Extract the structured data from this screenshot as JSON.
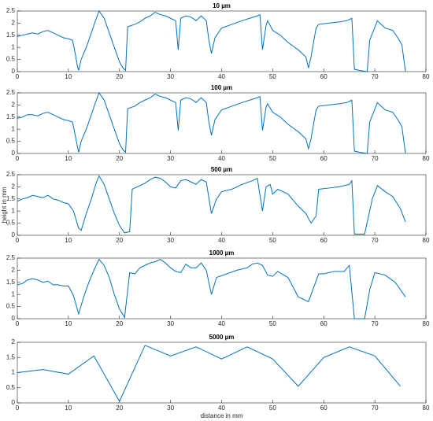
{
  "chart_data": [
    {
      "type": "line",
      "title": "10 µm",
      "color": "#0072bd",
      "x": [
        0,
        1,
        2,
        3,
        4,
        5,
        6,
        7,
        8,
        9,
        10,
        10.8,
        11.2,
        11.7,
        12,
        12.5,
        13.5,
        14.5,
        15.3,
        16,
        17,
        18,
        19,
        20,
        20.7,
        21.2,
        21.6,
        23,
        24,
        25,
        26,
        27,
        28,
        29,
        30,
        31,
        31.5,
        32,
        33,
        34,
        35,
        36,
        37,
        37.5,
        38,
        38.7,
        40,
        42,
        44,
        45.5,
        47,
        47.5,
        48,
        48.7,
        49,
        50,
        51.5,
        53,
        55,
        56.5,
        57,
        57.5,
        58.5,
        59,
        61,
        63,
        64.5,
        65.5,
        66,
        67,
        68.5,
        69,
        70.5,
        72,
        73.5,
        74.5,
        75.3,
        76
      ],
      "values": [
        1.45,
        1.5,
        1.55,
        1.6,
        1.55,
        1.65,
        1.7,
        1.6,
        1.5,
        1.4,
        1.35,
        1.3,
        0.9,
        0.3,
        0.05,
        0.5,
        1.0,
        1.6,
        2.1,
        2.5,
        2.2,
        1.6,
        1.0,
        0.4,
        0.15,
        0.05,
        1.85,
        1.95,
        2.05,
        2.2,
        2.3,
        2.45,
        2.35,
        2.3,
        2.2,
        2.1,
        0.9,
        2.2,
        2.3,
        2.25,
        2.1,
        2.3,
        2.1,
        1.3,
        0.75,
        1.4,
        1.8,
        1.95,
        2.1,
        2.2,
        2.3,
        2.35,
        0.9,
        1.9,
        2.1,
        1.7,
        1.5,
        1.2,
        0.9,
        0.6,
        0.15,
        0.6,
        1.8,
        1.95,
        2.0,
        2.05,
        2.1,
        2.2,
        0.1,
        0.05,
        0,
        1.3,
        2.1,
        1.8,
        1.7,
        1.4,
        1.1,
        0
      ],
      "xlim": [
        0,
        80
      ],
      "xticks": [
        0,
        10,
        20,
        30,
        40,
        50,
        60,
        70,
        80
      ],
      "ylim": [
        0,
        2.5
      ],
      "yticks": [
        0,
        0.5,
        1,
        1.5,
        2,
        2.5
      ]
    },
    {
      "type": "line",
      "title": "100 µm",
      "color": "#0072bd",
      "x": [
        0,
        1,
        2,
        3,
        4,
        5,
        6,
        7,
        8,
        9,
        10,
        10.8,
        11.2,
        11.7,
        12,
        12.5,
        13.5,
        14.5,
        15.3,
        16,
        17,
        18,
        19,
        20,
        20.7,
        21.2,
        21.6,
        23,
        24,
        25,
        26,
        27,
        28,
        29,
        30,
        31,
        31.5,
        32,
        33,
        34,
        35,
        36,
        37,
        37.5,
        38,
        38.7,
        40,
        42,
        44,
        45.5,
        47,
        47.5,
        48,
        48.7,
        49,
        50,
        51.5,
        53,
        55,
        56.5,
        57,
        57.5,
        58.5,
        59,
        61,
        63,
        64.5,
        65.5,
        66,
        67,
        68.5,
        69,
        70.5,
        72,
        73.5,
        74.5,
        75.3,
        76
      ],
      "values": [
        1.45,
        1.5,
        1.6,
        1.6,
        1.55,
        1.65,
        1.7,
        1.6,
        1.5,
        1.4,
        1.35,
        1.3,
        0.9,
        0.35,
        0.05,
        0.5,
        1.0,
        1.6,
        2.1,
        2.5,
        2.2,
        1.6,
        1.0,
        0.4,
        0.15,
        0.05,
        1.85,
        1.95,
        2.1,
        2.2,
        2.3,
        2.45,
        2.35,
        2.3,
        2.2,
        2.1,
        0.95,
        2.2,
        2.3,
        2.25,
        2.1,
        2.3,
        2.1,
        1.3,
        0.75,
        1.4,
        1.8,
        1.95,
        2.1,
        2.2,
        2.3,
        2.35,
        0.95,
        1.9,
        2.05,
        1.7,
        1.5,
        1.2,
        0.9,
        0.6,
        0.2,
        0.6,
        1.8,
        1.95,
        2.0,
        2.05,
        2.1,
        2.2,
        0.1,
        0.05,
        0,
        1.3,
        2.1,
        1.8,
        1.7,
        1.4,
        1.1,
        0
      ],
      "xlim": [
        0,
        80
      ],
      "xticks": [
        0,
        10,
        20,
        30,
        40,
        50,
        60,
        70,
        80
      ],
      "ylim": [
        0,
        2.5
      ],
      "yticks": [
        0,
        0.5,
        1,
        1.5,
        2,
        2.5
      ]
    },
    {
      "type": "line",
      "title": "500 µm",
      "ylabel": "height in mm",
      "color": "#0072bd",
      "x": [
        0,
        1,
        2,
        3,
        4,
        5,
        6,
        7,
        8,
        9,
        10,
        11,
        12,
        12.5,
        13.5,
        14.5,
        15.5,
        16,
        17,
        18,
        19,
        20,
        21,
        22,
        22.5,
        24,
        25,
        26,
        27,
        28,
        29,
        30,
        31,
        32,
        33,
        34,
        35,
        36,
        37,
        38,
        39,
        40,
        42,
        44,
        46,
        47,
        48,
        48.7,
        49.5,
        50,
        51,
        53,
        55,
        56.5,
        57.5,
        58.5,
        59,
        61,
        63,
        65,
        65.5,
        66,
        68,
        69.5,
        70.5,
        72,
        73.5,
        75,
        76
      ],
      "values": [
        1.4,
        1.5,
        1.55,
        1.65,
        1.6,
        1.55,
        1.65,
        1.5,
        1.45,
        1.35,
        1.3,
        1.0,
        0.3,
        0.2,
        0.9,
        1.5,
        2.2,
        2.45,
        2.1,
        1.5,
        0.9,
        0.4,
        0.1,
        0.15,
        1.9,
        2.05,
        2.15,
        2.3,
        2.4,
        2.35,
        2.2,
        2.0,
        1.95,
        2.25,
        2.3,
        2.2,
        2.1,
        2.3,
        2.2,
        0.9,
        1.5,
        1.8,
        1.9,
        2.1,
        2.25,
        2.35,
        1.0,
        2.0,
        2.1,
        1.7,
        1.9,
        1.7,
        1.2,
        0.9,
        0.5,
        0.8,
        1.9,
        1.95,
        2.0,
        2.1,
        2.25,
        0.05,
        0.05,
        1.5,
        2.05,
        1.8,
        1.6,
        1.1,
        0.55
      ],
      "xlim": [
        0,
        80
      ],
      "xticks": [
        0,
        10,
        20,
        30,
        40,
        50,
        60,
        70,
        80
      ],
      "ylim": [
        0,
        2.5
      ],
      "yticks": [
        0,
        0.5,
        1,
        1.5,
        2,
        2.5
      ]
    },
    {
      "type": "line",
      "title": "1000 µm",
      "color": "#0072bd",
      "x": [
        0,
        1,
        2,
        3,
        4,
        5,
        6,
        7,
        8,
        9,
        10,
        11,
        12,
        13,
        14,
        15,
        16,
        17,
        18,
        19,
        20,
        21,
        22,
        23,
        24,
        25,
        26,
        27,
        28,
        29,
        30,
        31,
        32,
        33,
        34,
        35,
        36,
        37,
        38,
        39,
        41,
        43,
        45,
        46,
        47,
        48,
        49,
        50,
        51,
        53,
        55,
        57,
        59,
        60,
        62,
        64,
        65,
        66,
        68,
        69,
        70,
        72,
        74,
        76
      ],
      "values": [
        1.4,
        1.45,
        1.6,
        1.65,
        1.6,
        1.5,
        1.55,
        1.4,
        1.4,
        1.35,
        1.35,
        0.95,
        0.2,
        0.9,
        1.5,
        2.0,
        2.45,
        2.2,
        1.7,
        1.0,
        0.4,
        0.05,
        1.9,
        1.85,
        2.1,
        2.2,
        2.3,
        2.35,
        2.45,
        2.3,
        2.1,
        1.95,
        1.9,
        2.25,
        2.1,
        2.1,
        2.3,
        2.0,
        1.0,
        1.7,
        1.85,
        2.0,
        2.1,
        2.25,
        2.3,
        2.2,
        1.8,
        1.75,
        1.95,
        1.7,
        0.9,
        0.7,
        1.85,
        1.85,
        1.95,
        1.95,
        2.2,
        0,
        0,
        1.2,
        1.9,
        1.8,
        1.5,
        0.9
      ],
      "xlim": [
        0,
        80
      ],
      "xticks": [
        0,
        10,
        20,
        30,
        40,
        50,
        60,
        70,
        80
      ],
      "ylim": [
        0,
        2.5
      ],
      "yticks": [
        0,
        0.5,
        1,
        1.5,
        2,
        2.5
      ]
    },
    {
      "type": "line",
      "title": "5000 µm",
      "xlabel": "distance in mm",
      "color": "#0072bd",
      "x": [
        0,
        5,
        10,
        15,
        20,
        25,
        30,
        35,
        40,
        45,
        50,
        55,
        60,
        65,
        70,
        75
      ],
      "values": [
        1.0,
        1.1,
        0.95,
        1.55,
        0.05,
        1.9,
        1.55,
        1.85,
        1.45,
        1.85,
        1.45,
        0.55,
        1.5,
        1.85,
        1.55,
        0.55
      ],
      "xlim": [
        0,
        80
      ],
      "xticks": [
        0,
        10,
        20,
        30,
        40,
        50,
        60,
        70,
        80
      ],
      "ylim": [
        0,
        2
      ],
      "yticks": [
        0,
        0.5,
        1,
        1.5,
        2
      ]
    }
  ]
}
